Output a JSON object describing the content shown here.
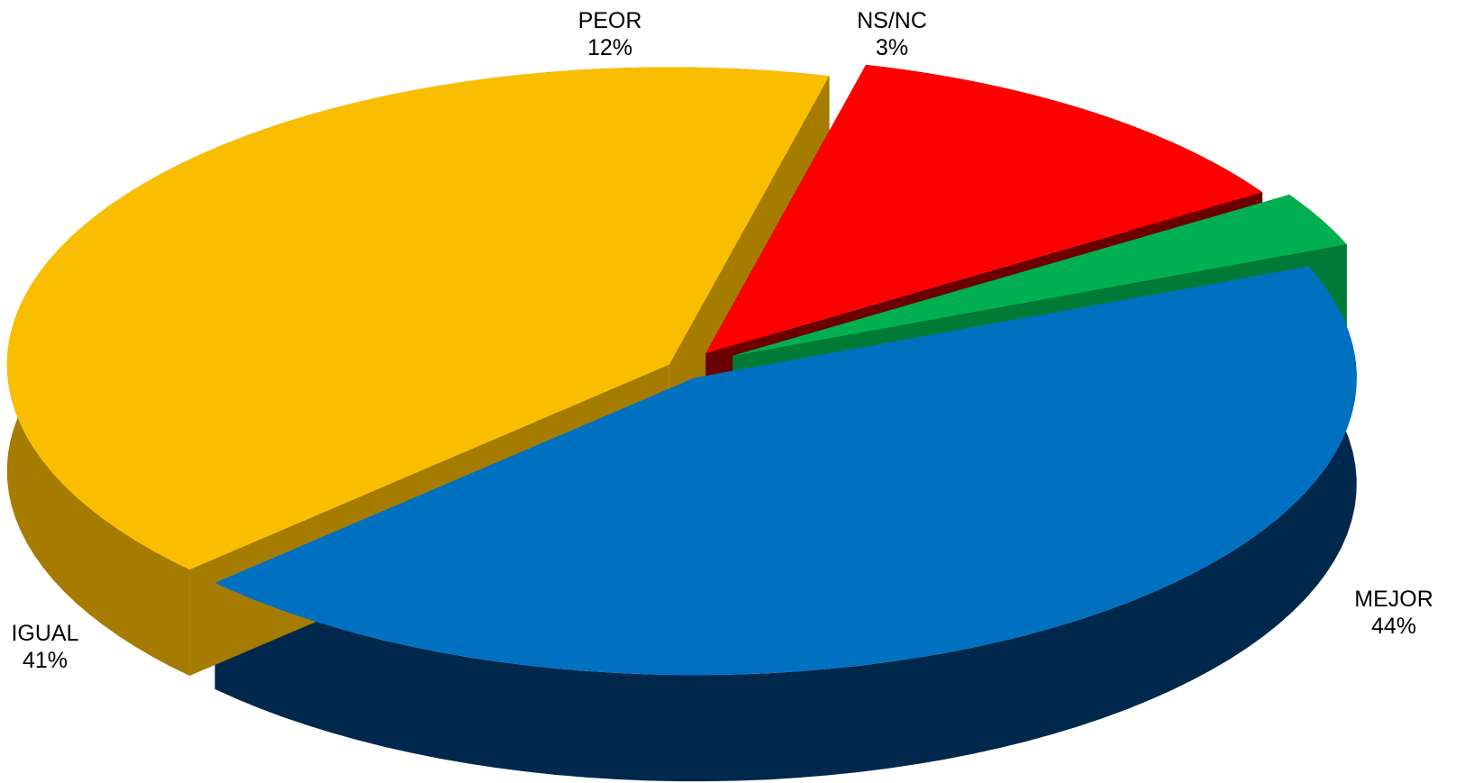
{
  "chart_data": {
    "type": "pie",
    "style": "3d-exploded",
    "slices": [
      {
        "label": "MEJOR",
        "value": 44,
        "value_label": "44%",
        "color": "#0070C0",
        "side_color": "#00284D"
      },
      {
        "label": "IGUAL",
        "value": 41,
        "value_label": "41%",
        "color": "#FABE00",
        "side_color": "#A67C00"
      },
      {
        "label": "PEOR",
        "value": 12,
        "value_label": "12%",
        "color": "#FF0000",
        "side_color": "#6B0000"
      },
      {
        "label": "NS/NC",
        "value": 3,
        "value_label": "3%",
        "color": "#00B050",
        "side_color": "#007A37"
      }
    ],
    "legend": "none"
  }
}
